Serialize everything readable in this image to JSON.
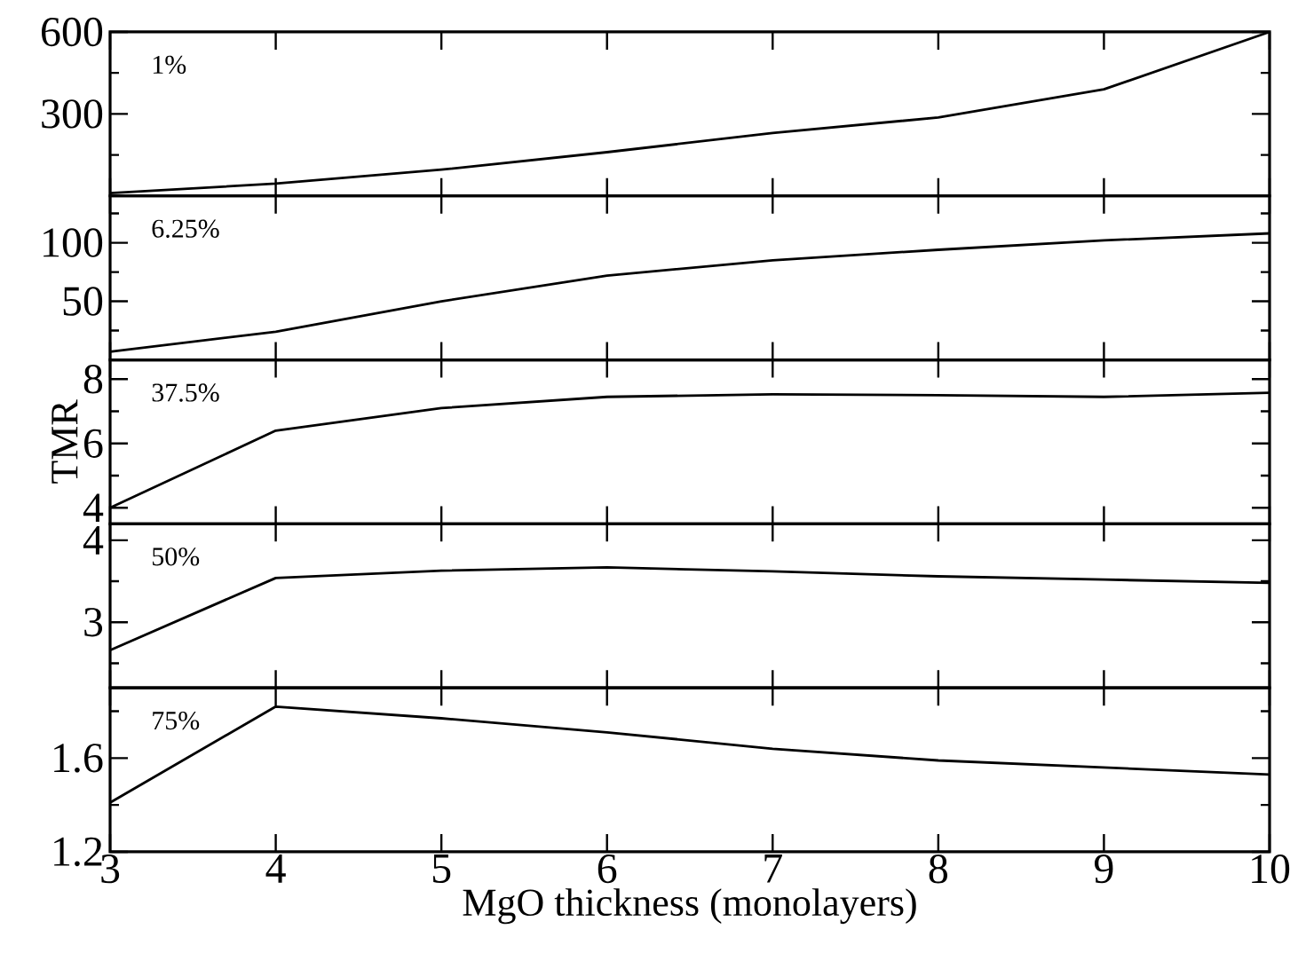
{
  "chart_data": [
    {
      "type": "line",
      "annotations": [
        "1%"
      ],
      "x": [
        3,
        4,
        5,
        6,
        7,
        8,
        9,
        10
      ],
      "xlim": [
        3,
        10
      ],
      "xticks": [
        3,
        4,
        5,
        6,
        7,
        8,
        9,
        10
      ],
      "ylim": [
        0,
        600
      ],
      "yticks": [
        {
          "value": 150,
          "label": null
        },
        300,
        {
          "value": 450,
          "label": null
        },
        600
      ],
      "tick_labels": "y",
      "marker": "none",
      "line_style": "solid",
      "series": [
        {
          "color": "#000000",
          "values": [
            10,
            45,
            96,
            160,
            230,
            287,
            390,
            600
          ]
        }
      ]
    },
    {
      "type": "line",
      "annotations": [
        "6.25%"
      ],
      "x": [
        3,
        4,
        5,
        6,
        7,
        8,
        9,
        10
      ],
      "xlim": [
        3,
        10
      ],
      "xticks": [
        3,
        4,
        5,
        6,
        7,
        8,
        9,
        10
      ],
      "ylim": [
        0,
        140
      ],
      "yticks": [
        {
          "value": 25,
          "label": null
        },
        50,
        {
          "value": 75,
          "label": null
        },
        100,
        {
          "value": 125,
          "label": null
        }
      ],
      "tick_labels": "y",
      "marker": "none",
      "line_style": "solid",
      "series": [
        {
          "color": "#000000",
          "values": [
            7,
            24,
            50,
            72,
            85,
            94,
            102,
            108
          ]
        }
      ]
    },
    {
      "type": "line",
      "annotations": [
        "37.5%"
      ],
      "ylabel": "TMR",
      "x": [
        3,
        4,
        5,
        6,
        7,
        8,
        9,
        10
      ],
      "xlim": [
        3,
        10
      ],
      "xticks": [
        3,
        4,
        5,
        6,
        7,
        8,
        9,
        10
      ],
      "ylim": [
        3.5,
        8.6
      ],
      "yticks": [
        4,
        {
          "value": 5,
          "label": null
        },
        6,
        {
          "value": 7,
          "label": null
        },
        8
      ],
      "tick_labels": "y",
      "marker": "none",
      "line_style": "solid",
      "series": [
        {
          "color": "#000000",
          "values": [
            4.0,
            6.4,
            7.1,
            7.45,
            7.53,
            7.5,
            7.45,
            7.58
          ]
        }
      ]
    },
    {
      "type": "line",
      "annotations": [
        "50%"
      ],
      "x": [
        3,
        4,
        5,
        6,
        7,
        8,
        9,
        10
      ],
      "xlim": [
        3,
        10
      ],
      "xticks": [
        3,
        4,
        5,
        6,
        7,
        8,
        9,
        10
      ],
      "ylim": [
        2.2,
        4.2
      ],
      "yticks": [
        {
          "value": 2.5,
          "label": null
        },
        3,
        {
          "value": 3.5,
          "label": null
        },
        4
      ],
      "tick_labels": "y",
      "marker": "none",
      "line_style": "solid",
      "series": [
        {
          "color": "#000000",
          "values": [
            2.66,
            3.54,
            3.63,
            3.67,
            3.62,
            3.56,
            3.52,
            3.48
          ]
        }
      ]
    },
    {
      "type": "line",
      "annotations": [
        "75%"
      ],
      "xlabel": "MgO thickness (monolayers)",
      "x": [
        3,
        4,
        5,
        6,
        7,
        8,
        9,
        10
      ],
      "xlim": [
        3,
        10
      ],
      "xticks": [
        3,
        4,
        5,
        6,
        7,
        8,
        9,
        10
      ],
      "ylim": [
        1.2,
        1.9
      ],
      "yticks": [
        1.2,
        {
          "value": 1.4,
          "label": null
        },
        1.6,
        {
          "value": 1.8,
          "label": null
        }
      ],
      "marker": "none",
      "line_style": "solid",
      "series": [
        {
          "color": "#000000",
          "values": [
            1.41,
            1.82,
            1.77,
            1.71,
            1.64,
            1.59,
            1.56,
            1.53
          ]
        }
      ]
    }
  ]
}
